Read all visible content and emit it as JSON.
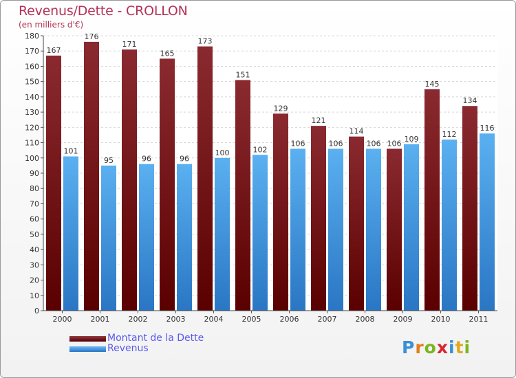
{
  "title": "Revenus/Dette - CROLLON",
  "subtitle": "(en milliers d'€)",
  "colors": {
    "debt": "#7a1a1e",
    "revenue": "#3f97e0",
    "title": "#b23355",
    "legend_text": "#5a5aee"
  },
  "legend": [
    {
      "label": "Montant de la Dette",
      "color": "#6a0c12"
    },
    {
      "label": "Revenus",
      "color": "#3f97e0"
    }
  ],
  "logo": {
    "text": "Proxiti"
  },
  "chart_data": {
    "type": "bar",
    "title": "Revenus/Dette - CROLLON",
    "subtitle": "(en milliers d'€)",
    "xlabel": "",
    "ylabel": "",
    "ylim": [
      0,
      180
    ],
    "y_ticks": [
      0,
      10,
      20,
      30,
      40,
      50,
      60,
      70,
      80,
      90,
      100,
      110,
      120,
      130,
      140,
      150,
      160,
      170,
      180
    ],
    "grid": true,
    "legend_position": "bottom-left",
    "categories": [
      "2000",
      "2001",
      "2002",
      "2003",
      "2004",
      "2005",
      "2006",
      "2007",
      "2008",
      "2009",
      "2010",
      "2011"
    ],
    "series": [
      {
        "name": "Montant de la Dette",
        "values": [
          167,
          176,
          171,
          165,
          173,
          151,
          129,
          121,
          114,
          106,
          145,
          134
        ]
      },
      {
        "name": "Revenus",
        "values": [
          101,
          95,
          96,
          96,
          100,
          102,
          106,
          106,
          106,
          109,
          112,
          116
        ]
      }
    ]
  }
}
